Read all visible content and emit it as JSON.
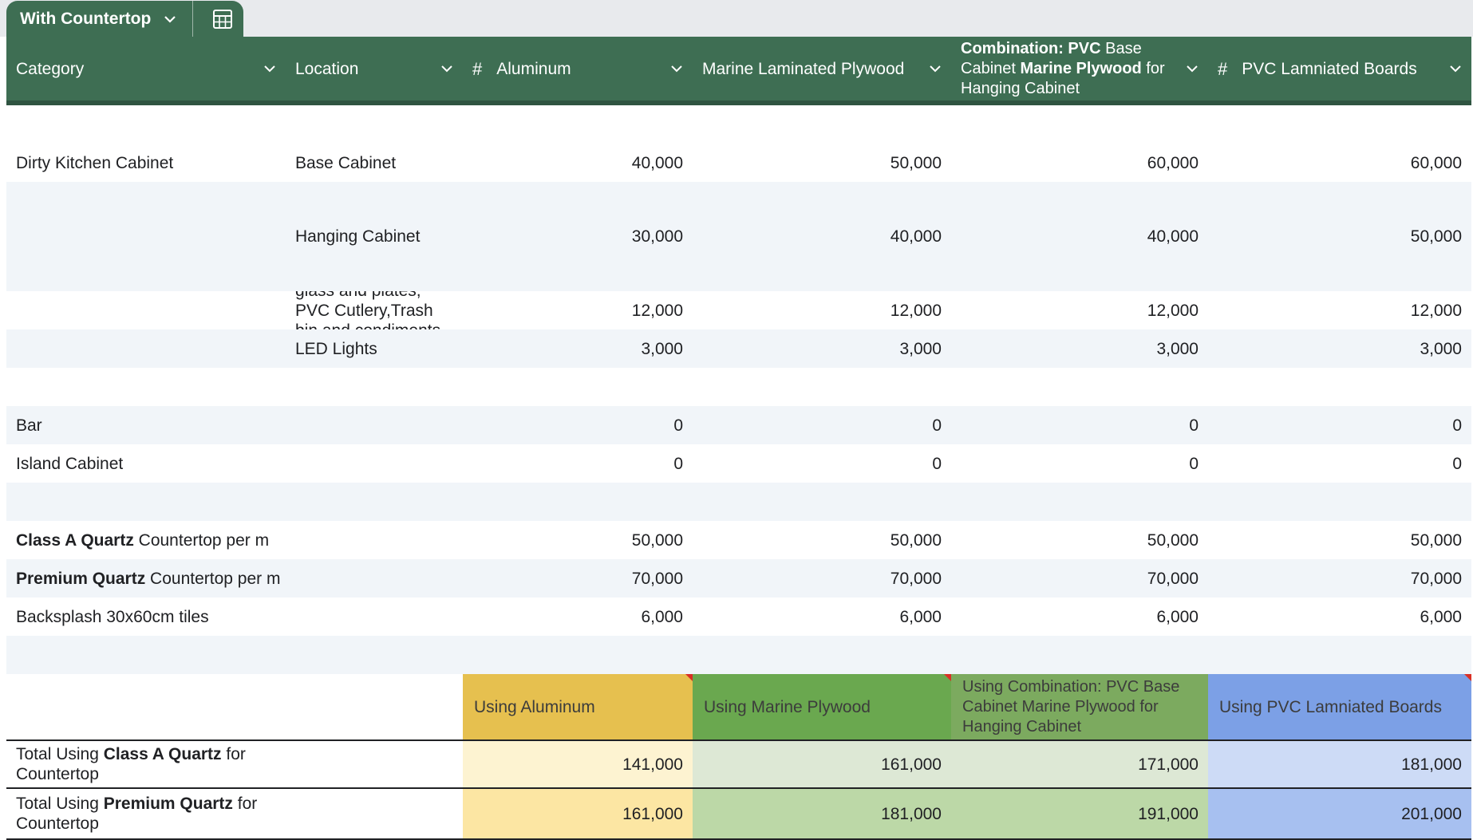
{
  "sheet_tab": {
    "name": "With Countertop"
  },
  "colors": {
    "header_bg": "#3e6e53",
    "aluminum": "#e6c04f",
    "marine": "#6aa84f",
    "combination": "#7caa5f",
    "pvc": "#7ca0e6"
  },
  "headers": {
    "category": "Category",
    "location": "Location",
    "aluminum_hash": "#",
    "aluminum": "Aluminum",
    "marine": "Marine Laminated Plywood",
    "combo_bold1": "Combination: PVC",
    "combo_t1": " Base Cabinet ",
    "combo_bold2": "Marine Plywood",
    "combo_t2": " for Hanging Cabinet",
    "pvc_hash": "#",
    "pvc": "PVC Lamniated Boards"
  },
  "rows": [
    {
      "category": "Dirty Kitchen Cabinet",
      "location": "Base Cabinet",
      "aluminum": "40,000",
      "marine": "50,000",
      "combination": "60,000",
      "pvc": "60,000"
    },
    {
      "category": "",
      "location": "Hanging Cabinet",
      "aluminum": "30,000",
      "marine": "40,000",
      "combination": "40,000",
      "pvc": "50,000"
    },
    {
      "category": "",
      "location": "Stainles pullouts glass and plates, PVC Cutlery,Trash bin and condiments rack",
      "aluminum": "12,000",
      "marine": "12,000",
      "combination": "12,000",
      "pvc": "12,000"
    },
    {
      "category": "",
      "location": "LED Lights",
      "aluminum": "3,000",
      "marine": "3,000",
      "combination": "3,000",
      "pvc": "3,000"
    },
    {
      "category": "",
      "location": "",
      "aluminum": "",
      "marine": "",
      "combination": "",
      "pvc": ""
    },
    {
      "category": "Bar",
      "location": "",
      "aluminum": "0",
      "marine": "0",
      "combination": "0",
      "pvc": "0"
    },
    {
      "category": "Island Cabinet",
      "location": "",
      "aluminum": "0",
      "marine": "0",
      "combination": "0",
      "pvc": "0"
    },
    {
      "category": "",
      "location": "",
      "aluminum": "",
      "marine": "",
      "combination": "",
      "pvc": ""
    },
    {
      "category_bold": "Class A Quartz",
      "category_rest": " Countertop per m",
      "location": "",
      "aluminum": "50,000",
      "marine": "50,000",
      "combination": "50,000",
      "pvc": "50,000"
    },
    {
      "category_bold": "Premium Quartz",
      "category_rest": " Countertop per m",
      "location": "",
      "aluminum": "70,000",
      "marine": "70,000",
      "combination": "70,000",
      "pvc": "70,000"
    },
    {
      "category": "Backsplash 30x60cm tiles",
      "location": "",
      "aluminum": "6,000",
      "marine": "6,000",
      "combination": "6,000",
      "pvc": "6,000"
    },
    {
      "category": "",
      "location": "",
      "aluminum": "",
      "marine": "",
      "combination": "",
      "pvc": ""
    }
  ],
  "summary_headers": {
    "aluminum": "Using Aluminum",
    "marine": "Using Marine Plywood",
    "combination": "Using Combination: PVC Base Cabinet Marine Plywood for Hanging Cabinet",
    "pvc": "Using PVC Lamniated Boards"
  },
  "totals": [
    {
      "pre": "Total Using ",
      "bold": "Class A Quartz",
      "post": " for Countertop",
      "aluminum": "141,000",
      "marine": "161,000",
      "combination": "171,000",
      "pvc": "181,000"
    },
    {
      "pre": "Total Using ",
      "bold": "Premium Quartz",
      "post": " for Countertop",
      "aluminum": "161,000",
      "marine": "181,000",
      "combination": "191,000",
      "pvc": "201,000"
    }
  ]
}
